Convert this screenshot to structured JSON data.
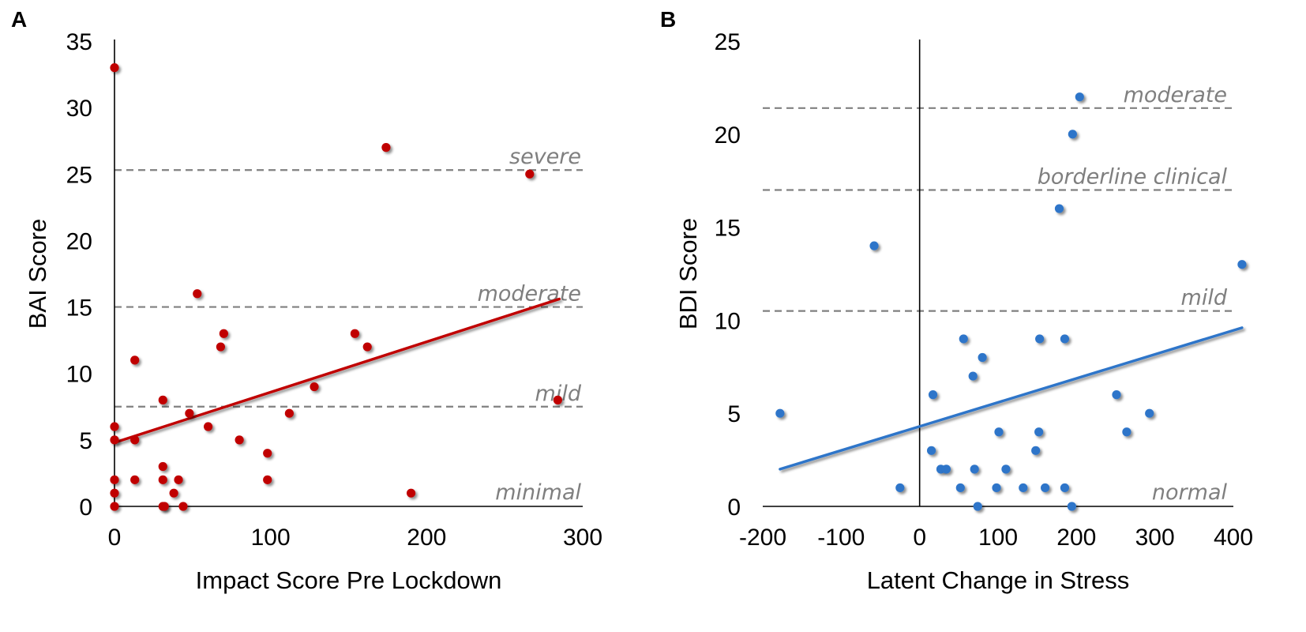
{
  "chart_data": [
    {
      "panel": "A",
      "type": "scatter",
      "title": "",
      "xlabel": "Impact Score Pre Lockdown",
      "ylabel": "BAI Score",
      "xlim": [
        0,
        300
      ],
      "ylim": [
        0,
        35
      ],
      "xticks": [
        0,
        100,
        200,
        300
      ],
      "yticks": [
        0,
        5,
        10,
        15,
        20,
        25,
        30,
        35
      ],
      "color": "#c00000",
      "points": [
        [
          0,
          33
        ],
        [
          0,
          6
        ],
        [
          0,
          5
        ],
        [
          0,
          2
        ],
        [
          0,
          1
        ],
        [
          0,
          0
        ],
        [
          13,
          11
        ],
        [
          13,
          5
        ],
        [
          13,
          2
        ],
        [
          31,
          8
        ],
        [
          31,
          3
        ],
        [
          31,
          2
        ],
        [
          31,
          0
        ],
        [
          32,
          0
        ],
        [
          38,
          1
        ],
        [
          41,
          2
        ],
        [
          44,
          0
        ],
        [
          48,
          7
        ],
        [
          53,
          16
        ],
        [
          60,
          6
        ],
        [
          68,
          12
        ],
        [
          70,
          13
        ],
        [
          80,
          5
        ],
        [
          98,
          4
        ],
        [
          98,
          2
        ],
        [
          112,
          7
        ],
        [
          128,
          9
        ],
        [
          154,
          13
        ],
        [
          162,
          12
        ],
        [
          174,
          27
        ],
        [
          190,
          1
        ],
        [
          266,
          25
        ],
        [
          284,
          8
        ]
      ],
      "trendline": {
        "x": [
          0,
          285
        ],
        "y": [
          4.8,
          15.6
        ]
      },
      "thresholds": [
        {
          "label": "minimal",
          "value": null
        },
        {
          "label": "mild",
          "value": 7.5
        },
        {
          "label": "moderate",
          "value": 15
        },
        {
          "label": "severe",
          "value": 25.3
        }
      ]
    },
    {
      "panel": "B",
      "type": "scatter",
      "title": "",
      "xlabel": "Latent Change in Stress",
      "ylabel": "BDI Score",
      "xlim": [
        -200,
        400
      ],
      "ylim": [
        0,
        25
      ],
      "xticks": [
        -200,
        -100,
        0,
        100,
        200,
        300,
        400
      ],
      "yticks": [
        0,
        5,
        10,
        15,
        20,
        25
      ],
      "color": "#2e75c9",
      "points": [
        [
          -178,
          5
        ],
        [
          -58,
          14
        ],
        [
          -25,
          1
        ],
        [
          17,
          6
        ],
        [
          15,
          3
        ],
        [
          27,
          2
        ],
        [
          34,
          2
        ],
        [
          52,
          1
        ],
        [
          56,
          9
        ],
        [
          68,
          7
        ],
        [
          70,
          2
        ],
        [
          74,
          0
        ],
        [
          80,
          8
        ],
        [
          98,
          1
        ],
        [
          101,
          4
        ],
        [
          110,
          2
        ],
        [
          132,
          1
        ],
        [
          148,
          3
        ],
        [
          153,
          9
        ],
        [
          152,
          4
        ],
        [
          160,
          1
        ],
        [
          178,
          16
        ],
        [
          185,
          9
        ],
        [
          185,
          1
        ],
        [
          194,
          0
        ],
        [
          195,
          20
        ],
        [
          204,
          22
        ],
        [
          251,
          6
        ],
        [
          264,
          4
        ],
        [
          293,
          5
        ],
        [
          411,
          13
        ]
      ],
      "trendline": {
        "x": [
          -178,
          411
        ],
        "y": [
          2.0,
          9.6
        ]
      },
      "thresholds": [
        {
          "label": "normal",
          "value": null
        },
        {
          "label": "mild",
          "value": 10.5
        },
        {
          "label": "borderline clinical",
          "value": 17
        },
        {
          "label": "moderate",
          "value": 21.4
        }
      ]
    }
  ]
}
